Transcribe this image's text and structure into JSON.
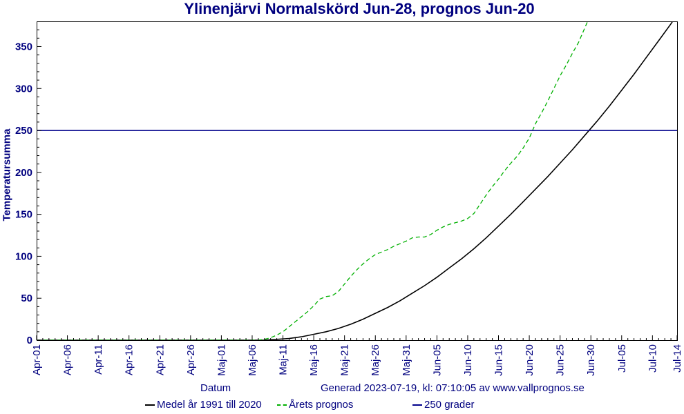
{
  "chart_data": {
    "type": "line",
    "title": "Ylinenjärvi Normalskörd Jun-28, prognos Jun-20",
    "xlabel": "Datum",
    "ylabel": "Temperatursumma",
    "generated_text": "Generad 2023-07-19, kl: 07:10:05 av www.vallprognos.se",
    "x_tick_labels": [
      "Apr-01",
      "Apr-06",
      "Apr-11",
      "Apr-16",
      "Apr-21",
      "Apr-26",
      "Maj-01",
      "Maj-06",
      "Maj-11",
      "Maj-16",
      "Maj-21",
      "Maj-26",
      "Maj-31",
      "Jun-05",
      "Jun-10",
      "Jun-15",
      "Jun-20",
      "Jun-25",
      "Jun-30",
      "Jul-05",
      "Jul-10",
      "Jul-14"
    ],
    "x_tick_days": [
      0,
      5,
      10,
      15,
      20,
      25,
      30,
      35,
      40,
      45,
      50,
      55,
      60,
      65,
      70,
      75,
      80,
      85,
      90,
      95,
      100,
      104
    ],
    "y_ticks": [
      0,
      50,
      100,
      150,
      200,
      250,
      300,
      350
    ],
    "xlim": [
      "Apr-01",
      "Jul-14"
    ],
    "ylim": [
      0,
      380
    ],
    "grid": false,
    "legend_position": "bottom",
    "series": [
      {
        "name": "Medel år 1991 till 2020",
        "color": "#000000",
        "style": "solid",
        "x": [
          "Apr-01",
          "May-07",
          "May-08",
          "May-10",
          "May-12",
          "May-14",
          "May-16",
          "May-18",
          "May-20",
          "May-22",
          "May-24",
          "May-26",
          "May-28",
          "May-30",
          "Jun-01",
          "Jun-03",
          "Jun-05",
          "Jun-07",
          "Jun-09",
          "Jun-11",
          "Jun-13",
          "Jun-15",
          "Jun-17",
          "Jun-19",
          "Jun-21",
          "Jun-23",
          "Jun-25",
          "Jun-27",
          "Jun-29",
          "Jul-01",
          "Jul-03",
          "Jul-05",
          "Jul-07",
          "Jul-09",
          "Jul-11",
          "Jul-13",
          "Jul-14"
        ],
        "y": [
          0,
          0,
          0,
          1,
          2,
          4,
          7,
          10,
          14,
          19,
          25,
          32,
          39,
          47,
          56,
          65,
          75,
          86,
          97,
          109,
          122,
          136,
          150,
          165,
          180,
          195,
          211,
          227,
          244,
          261,
          279,
          298,
          317,
          337,
          357,
          377,
          388
        ]
      },
      {
        "name": "Årets prognos",
        "color": "#00b000",
        "style": "dashed",
        "x": [
          "Apr-01",
          "May-07",
          "May-08",
          "May-09",
          "May-10",
          "May-11",
          "May-12",
          "May-13",
          "May-14",
          "May-15",
          "May-16",
          "May-17",
          "May-18",
          "May-19",
          "May-20",
          "May-21",
          "May-22",
          "May-23",
          "May-24",
          "May-25",
          "May-26",
          "May-27",
          "May-28",
          "May-29",
          "May-30",
          "May-31",
          "Jun-01",
          "Jun-02",
          "Jun-03",
          "Jun-04",
          "Jun-05",
          "Jun-06",
          "Jun-07",
          "Jun-08",
          "Jun-09",
          "Jun-10",
          "Jun-11",
          "Jun-12",
          "Jun-13",
          "Jun-14",
          "Jun-15",
          "Jun-16",
          "Jun-17",
          "Jun-18",
          "Jun-19",
          "Jun-20",
          "Jun-21",
          "Jun-22",
          "Jun-23",
          "Jun-24",
          "Jun-25",
          "Jun-26",
          "Jun-27",
          "Jun-28",
          "Jun-29",
          "Jun-30",
          "Jul-01"
        ],
        "y": [
          0,
          0,
          1,
          3,
          6,
          10,
          16,
          22,
          28,
          34,
          41,
          49,
          52,
          53,
          58,
          67,
          76,
          84,
          91,
          97,
          102,
          105,
          108,
          112,
          115,
          118,
          122,
          123,
          123,
          126,
          131,
          135,
          138,
          140,
          142,
          145,
          151,
          162,
          173,
          183,
          192,
          202,
          211,
          219,
          229,
          241,
          258,
          271,
          285,
          300,
          315,
          328,
          342,
          355,
          372,
          389,
          396
        ]
      },
      {
        "name": "250 grader",
        "color": "#00008b",
        "style": "solid",
        "x": [
          "Apr-01",
          "Jul-14"
        ],
        "y": [
          250,
          250
        ]
      }
    ]
  }
}
